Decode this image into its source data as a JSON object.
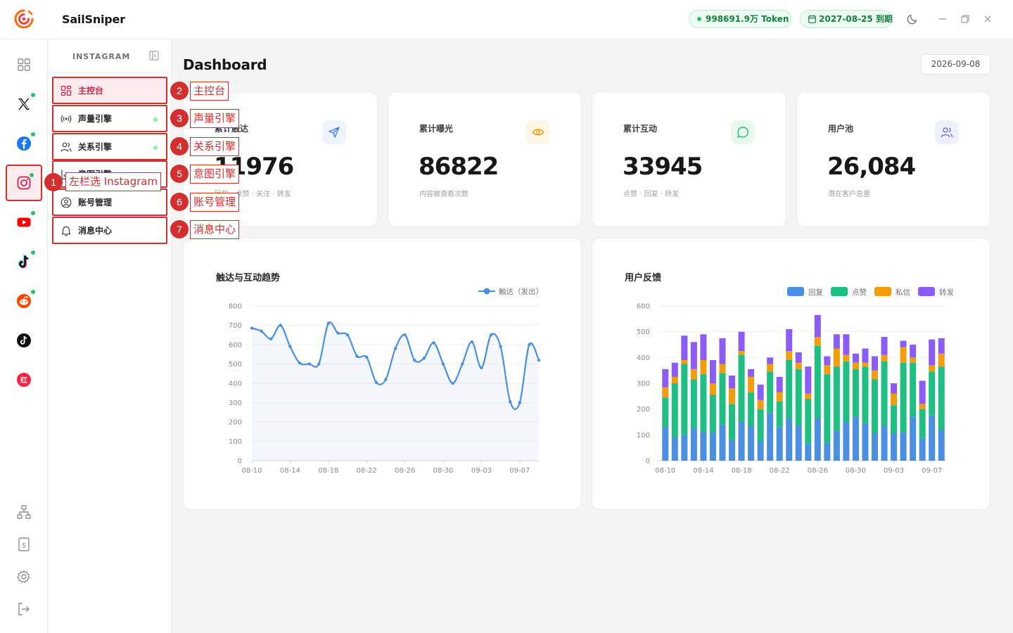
{
  "app": {
    "name": "SailSniper",
    "token_balance": "998691.9万 Token",
    "expiry": "2027-08-25 到期"
  },
  "rail": {
    "items": [
      {
        "icon": "grid-icon"
      },
      {
        "icon": "x-icon"
      },
      {
        "icon": "facebook-icon"
      },
      {
        "icon": "instagram-icon",
        "active": true
      },
      {
        "icon": "youtube-icon"
      },
      {
        "icon": "tiktok-icon"
      },
      {
        "icon": "reddit-icon"
      },
      {
        "icon": "tiktok-alt-icon"
      },
      {
        "icon": "xiaohongshu-icon"
      }
    ],
    "bottom": [
      "sitemap-icon",
      "billing-icon",
      "settings-icon",
      "logout-icon"
    ]
  },
  "subnav": {
    "title": "INSTAGRAM",
    "items": [
      {
        "label": "主控台"
      },
      {
        "label": "声量引擎"
      },
      {
        "label": "关系引擎"
      },
      {
        "label": "意图引擎"
      },
      {
        "label": "账号管理"
      },
      {
        "label": "消息中心"
      }
    ]
  },
  "annotations": [
    {
      "n": "1",
      "text": "左栏选 Instagram"
    },
    {
      "n": "2",
      "text": "主控台"
    },
    {
      "n": "3",
      "text": "声量引擎"
    },
    {
      "n": "4",
      "text": "关系引擎"
    },
    {
      "n": "5",
      "text": "意图引擎"
    },
    {
      "n": "6",
      "text": "账号管理"
    },
    {
      "n": "7",
      "text": "消息中心"
    }
  ],
  "page": {
    "title": "Dashboard",
    "date": "2026-09-08"
  },
  "stats": [
    {
      "label": "累计触达",
      "value": "11976",
      "sub": "回复 · 点赞 · 关注 · 转发",
      "icon": "send-icon",
      "color": "#3b82f6",
      "bg": "#eef4ff"
    },
    {
      "label": "累计曝光",
      "value": "86822",
      "sub": "内容被查看次数",
      "icon": "eye-icon",
      "color": "#f59e0b",
      "bg": "#fef6e4"
    },
    {
      "label": "累计互动",
      "value": "33945",
      "sub": "点赞 · 回复 · 转发",
      "icon": "message-icon",
      "color": "#22c55e",
      "bg": "#e8f8ee"
    },
    {
      "label": "用户池",
      "value": "26,084",
      "sub": "潜在客户总量",
      "icon": "users-icon",
      "color": "#6366f1",
      "bg": "#eef0ff"
    }
  ],
  "chart_data": [
    {
      "type": "line",
      "title": "触达与互动趋势",
      "series": [
        {
          "name": "触达（发出）",
          "color": "#4a8fe2"
        }
      ],
      "x_ticks": [
        "08-10",
        "08-14",
        "08-18",
        "08-22",
        "08-26",
        "08-30",
        "09-03",
        "09-07"
      ],
      "y_ticks": [
        "0",
        "100",
        "200",
        "300",
        "400",
        "500",
        "600",
        "700",
        "800"
      ],
      "ylim": [
        0,
        800
      ],
      "x_start": "2026-08-10",
      "values": [
        685,
        670,
        630,
        700,
        590,
        505,
        500,
        500,
        710,
        660,
        650,
        540,
        535,
        405,
        420,
        580,
        650,
        520,
        530,
        610,
        500,
        400,
        500,
        615,
        480,
        650,
        590,
        305,
        300,
        600,
        520
      ]
    },
    {
      "type": "bar",
      "stacked": true,
      "title": "用户反馈",
      "series": [
        {
          "name": "回复",
          "color": "#4a8fe2",
          "values": [
            130,
            90,
            100,
            125,
            110,
            110,
            140,
            80,
            150,
            135,
            75,
            185,
            130,
            165,
            135,
            65,
            165,
            70,
            115,
            150,
            170,
            145,
            105,
            135,
            105,
            110,
            170,
            85,
            175,
            120
          ]
        },
        {
          "name": "点赞",
          "color": "#1fbf83",
          "values": [
            115,
            210,
            275,
            190,
            225,
            145,
            200,
            140,
            260,
            130,
            125,
            160,
            100,
            225,
            220,
            175,
            280,
            265,
            250,
            235,
            185,
            220,
            210,
            250,
            110,
            270,
            210,
            115,
            170,
            245
          ]
        },
        {
          "name": "私信",
          "color": "#f29e0c",
          "values": [
            40,
            25,
            15,
            40,
            55,
            45,
            35,
            60,
            15,
            60,
            35,
            30,
            35,
            35,
            25,
            20,
            35,
            35,
            70,
            25,
            25,
            15,
            35,
            25,
            45,
            60,
            20,
            20,
            25,
            50
          ]
        },
        {
          "name": "转发",
          "color": "#8b5cf6",
          "values": [
            70,
            55,
            95,
            105,
            100,
            90,
            100,
            50,
            75,
            30,
            60,
            25,
            60,
            85,
            40,
            105,
            85,
            35,
            55,
            80,
            35,
            55,
            55,
            70,
            40,
            25,
            50,
            90,
            100,
            60
          ]
        }
      ],
      "x_ticks": [
        "08-10",
        "08-14",
        "08-18",
        "08-22",
        "08-26",
        "08-30",
        "09-03",
        "09-07"
      ],
      "y_ticks": [
        "0",
        "100",
        "200",
        "300",
        "400",
        "500",
        "600"
      ],
      "ylim": [
        0,
        600
      ]
    }
  ]
}
